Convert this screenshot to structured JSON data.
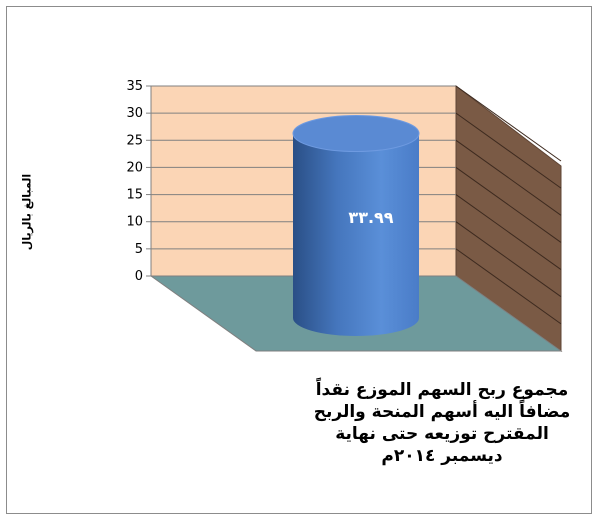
{
  "chart_data": {
    "type": "bar",
    "categories": [
      "مجموع ربح السهم الموزع نقداً مضافاً اليه أسهم المنحة والربح المقترح توزيعه حتى نهاية ديسمبر ٢٠١٤م"
    ],
    "values": [
      33.99
    ],
    "data_labels": [
      "٣٣.٩٩"
    ],
    "ylabel": "المبالغ بالريال",
    "ylim": [
      0,
      35
    ],
    "yticks": [
      0,
      5,
      10,
      15,
      20,
      25,
      30,
      35
    ],
    "grid": true,
    "style": "3d-cylinder",
    "colors": {
      "back_wall": "#fbd5b5",
      "side_wall": "#7a5a45",
      "floor": "#6e9a9c",
      "bar": "#4f7fc4",
      "bar_dark": "#2a4f86",
      "data_label": "#ffffff"
    }
  }
}
